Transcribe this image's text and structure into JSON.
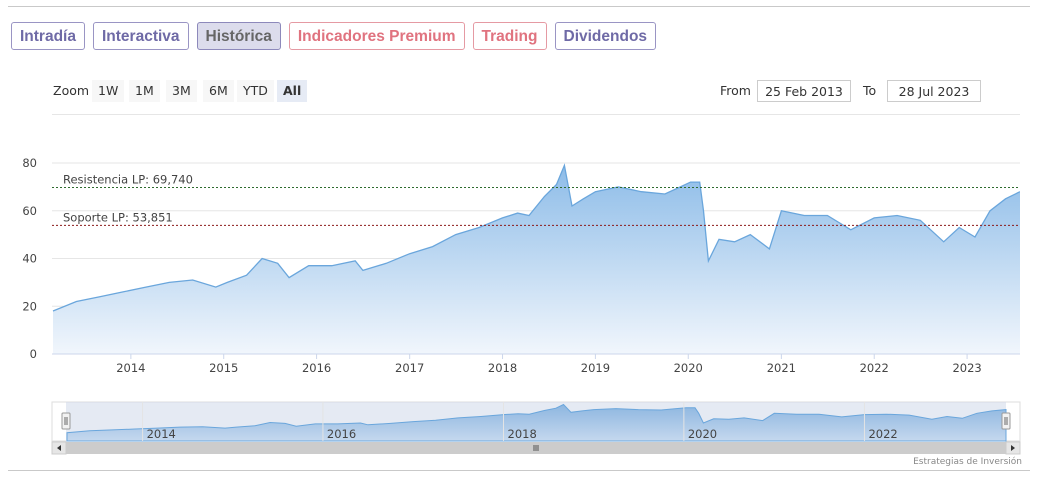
{
  "tabs": [
    {
      "label": "Intradía",
      "state": "normal"
    },
    {
      "label": "Interactiva",
      "state": "normal"
    },
    {
      "label": "Histórica",
      "state": "active"
    },
    {
      "label": "Indicadores Premium",
      "state": "premium"
    },
    {
      "label": "Trading",
      "state": "premium"
    },
    {
      "label": "Dividendos",
      "state": "normal"
    }
  ],
  "zoom": {
    "label": "Zoom",
    "buttons": [
      "1W",
      "1M",
      "3M",
      "6M",
      "YTD",
      "All"
    ],
    "selected": "All"
  },
  "range": {
    "from_label": "From",
    "from_value": "25 Feb 2013",
    "to_label": "To",
    "to_value": "28 Jul 2023"
  },
  "credit": "Estrategias de Inversión",
  "colors": {
    "tab_text": "#6f6aa6",
    "premium_text": "#e0737f",
    "area_stroke": "#6aa6dc",
    "area_fill_top": "#8dbce8",
    "area_fill_bottom": "#f1f6fc",
    "support_line": "#8b1a1a",
    "resistance_line": "#2e6b2e"
  },
  "chart_data": {
    "type": "area",
    "x_range": [
      "2013-02-25",
      "2023-07-28"
    ],
    "ylim": [
      0,
      80
    ],
    "y_ticks": [
      0,
      20,
      40,
      60,
      80
    ],
    "x_ticks": [
      "2014",
      "2015",
      "2016",
      "2017",
      "2018",
      "2019",
      "2020",
      "2021",
      "2022",
      "2023"
    ],
    "navigator_ticks": [
      "2014",
      "2016",
      "2018",
      "2020",
      "2022"
    ],
    "grid": true,
    "annotations": [
      {
        "label": "Resistencia LP: 69,740",
        "value": 69.74
      },
      {
        "label": "Soporte LP: 53,851",
        "value": 53.851
      }
    ],
    "series": [
      {
        "x": [
          "2013-03-01",
          "2013-06-01",
          "2013-09-01",
          "2013-12-01",
          "2014-03-01",
          "2014-06-01",
          "2014-09-01",
          "2014-12-01",
          "2015-01-15",
          "2015-04-01",
          "2015-06-01",
          "2015-08-01",
          "2015-09-15",
          "2015-12-01",
          "2016-03-01",
          "2016-06-01",
          "2016-07-01",
          "2016-10-01",
          "2017-01-01",
          "2017-04-01",
          "2017-07-01",
          "2017-10-01",
          "2018-01-01",
          "2018-03-01",
          "2018-04-15",
          "2018-06-15",
          "2018-08-01",
          "2018-09-01",
          "2018-10-01",
          "2018-11-15",
          "2019-01-01",
          "2019-04-01",
          "2019-07-01",
          "2019-10-01",
          "2019-12-01",
          "2020-01-10",
          "2020-02-15",
          "2020-03-01",
          "2020-03-20",
          "2020-05-01",
          "2020-07-01",
          "2020-09-01",
          "2020-11-15",
          "2021-01-01",
          "2021-04-01",
          "2021-07-01",
          "2021-10-01",
          "2022-01-01",
          "2022-04-01",
          "2022-07-01",
          "2022-10-01",
          "2022-12-01",
          "2023-02-01",
          "2023-04-01",
          "2023-06-01",
          "2023-07-28"
        ],
        "values": [
          18,
          22,
          24,
          26,
          28,
          30,
          31,
          28,
          30,
          33,
          40,
          38,
          32,
          37,
          37,
          39,
          35,
          38,
          42,
          45,
          50,
          53,
          57,
          59,
          58,
          66,
          71,
          79,
          62,
          65,
          68,
          70,
          68,
          67,
          70,
          72,
          72,
          60,
          39,
          48,
          47,
          50,
          44,
          60,
          58,
          58,
          52,
          57,
          58,
          56,
          47,
          53,
          49,
          60,
          65,
          68
        ]
      }
    ]
  }
}
